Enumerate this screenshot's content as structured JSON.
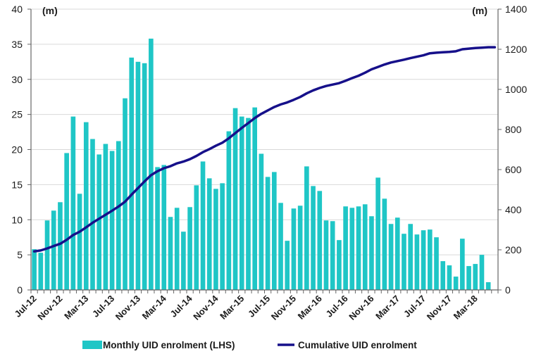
{
  "chart_data": {
    "type": "bar+line",
    "title": "",
    "left_axis": {
      "unit_label": "(m)",
      "ylim": [
        0,
        40
      ],
      "ticks": [
        0,
        5,
        10,
        15,
        20,
        25,
        30,
        35,
        40
      ]
    },
    "right_axis": {
      "unit_label": "(m)",
      "ylim": [
        0,
        1400
      ],
      "ticks": [
        0,
        200,
        400,
        600,
        800,
        1000,
        1200,
        1400
      ]
    },
    "x_tick_labels": [
      "Jul-12",
      "Nov-12",
      "Mar-13",
      "Jul-13",
      "Nov-13",
      "Mar-14",
      "Jul-14",
      "Nov-14",
      "Mar-15",
      "Jul-15",
      "Nov-15",
      "Mar-16",
      "Jul-16",
      "Nov-16",
      "Mar-17",
      "Jul-17",
      "Nov-17",
      "Mar-18"
    ],
    "x_tick_every": 4,
    "categories": [
      "Jul-12",
      "Aug-12",
      "Sep-12",
      "Oct-12",
      "Nov-12",
      "Dec-12",
      "Jan-13",
      "Feb-13",
      "Mar-13",
      "Apr-13",
      "May-13",
      "Jun-13",
      "Jul-13",
      "Aug-13",
      "Sep-13",
      "Oct-13",
      "Nov-13",
      "Dec-13",
      "Jan-14",
      "Feb-14",
      "Mar-14",
      "Apr-14",
      "May-14",
      "Jun-14",
      "Jul-14",
      "Aug-14",
      "Sep-14",
      "Oct-14",
      "Nov-14",
      "Dec-14",
      "Jan-15",
      "Feb-15",
      "Mar-15",
      "Apr-15",
      "May-15",
      "Jun-15",
      "Jul-15",
      "Aug-15",
      "Sep-15",
      "Oct-15",
      "Nov-15",
      "Dec-15",
      "Jan-16",
      "Feb-16",
      "Mar-16",
      "Apr-16",
      "May-16",
      "Jun-16",
      "Jul-16",
      "Aug-16",
      "Sep-16",
      "Oct-16",
      "Nov-16",
      "Dec-16",
      "Jan-17",
      "Feb-17",
      "Mar-17",
      "Apr-17",
      "May-17",
      "Jun-17",
      "Jul-17",
      "Aug-17",
      "Sep-17",
      "Oct-17",
      "Nov-17",
      "Dec-17",
      "Jan-18",
      "Feb-18",
      "Mar-18",
      "Apr-18",
      "May-18",
      "Jun-18"
    ],
    "series": [
      {
        "name": "Monthly UID enrolment (LHS)",
        "type": "bar",
        "axis": "left",
        "color": "#1fc6c6",
        "values": [
          5.8,
          5.3,
          9.9,
          11.3,
          12.5,
          19.5,
          24.7,
          13.7,
          23.9,
          21.5,
          19.3,
          20.8,
          19.8,
          21.2,
          27.3,
          33.1,
          32.5,
          32.3,
          35.8,
          17.5,
          17.8,
          10.4,
          11.7,
          8.3,
          11.8,
          14.9,
          18.3,
          15.9,
          14.4,
          15.2,
          22.6,
          25.9,
          24.7,
          24.5,
          26.0,
          19.4,
          16.1,
          16.8,
          12.4,
          7.0,
          11.6,
          12.0,
          17.6,
          14.8,
          14.1,
          9.9,
          9.8,
          7.1,
          11.9,
          11.7,
          11.9,
          12.2,
          10.5,
          16.0,
          13.0,
          9.4,
          10.3,
          8.0,
          9.4,
          7.9,
          8.5,
          8.6,
          7.5,
          4.1,
          3.5,
          1.9,
          7.3,
          3.4,
          3.7,
          5.0,
          1.1,
          0
        ]
      },
      {
        "name": "Cumulative UID enrolment",
        "type": "line",
        "axis": "right",
        "color": "#16108a",
        "values": [
          192,
          197,
          207,
          219,
          230,
          250,
          274,
          290,
          312,
          335,
          355,
          375,
          395,
          416,
          440,
          475,
          508,
          541,
          572,
          592,
          607,
          617,
          631,
          640,
          652,
          668,
          687,
          702,
          719,
          734,
          756,
          782,
          808,
          832,
          857,
          878,
          895,
          912,
          925,
          935,
          948,
          962,
          980,
          995,
          1007,
          1017,
          1024,
          1031,
          1043,
          1056,
          1068,
          1083,
          1100,
          1112,
          1124,
          1134,
          1141,
          1148,
          1156,
          1163,
          1170,
          1180,
          1183,
          1185,
          1187,
          1190,
          1200,
          1203,
          1206,
          1208,
          1210,
          1210
        ]
      }
    ],
    "legend": {
      "placement": "bottom"
    }
  }
}
